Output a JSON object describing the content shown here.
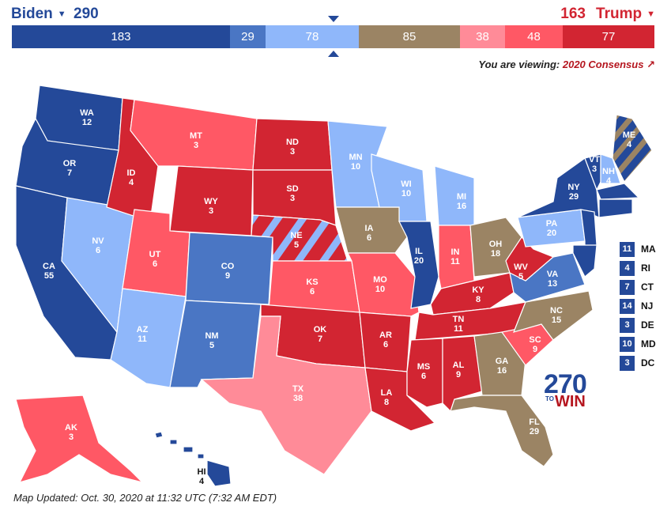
{
  "header": {
    "left_candidate": "Biden",
    "left_total": "290",
    "right_candidate": "Trump",
    "right_total": "163"
  },
  "bar": [
    {
      "value": "183",
      "color": "#244999"
    },
    {
      "value": "29",
      "color": "#4a76c4"
    },
    {
      "value": "78",
      "color": "#8fb7fa"
    },
    {
      "value": "85",
      "color": "#9b8464"
    },
    {
      "value": "38",
      "color": "#ff8b98"
    },
    {
      "value": "48",
      "color": "#ff5865"
    },
    {
      "value": "77",
      "color": "#d22532"
    }
  ],
  "viewing": {
    "prefix": "You are viewing:",
    "selection": "2020 Consensus"
  },
  "states": {
    "WA": {
      "abbr": "WA",
      "ev": "12"
    },
    "OR": {
      "abbr": "OR",
      "ev": "7"
    },
    "CA": {
      "abbr": "CA",
      "ev": "55"
    },
    "ID": {
      "abbr": "ID",
      "ev": "4"
    },
    "NV": {
      "abbr": "NV",
      "ev": "6"
    },
    "MT": {
      "abbr": "MT",
      "ev": "3"
    },
    "WY": {
      "abbr": "WY",
      "ev": "3"
    },
    "UT": {
      "abbr": "UT",
      "ev": "6"
    },
    "AZ": {
      "abbr": "AZ",
      "ev": "11"
    },
    "CO": {
      "abbr": "CO",
      "ev": "9"
    },
    "NM": {
      "abbr": "NM",
      "ev": "5"
    },
    "ND": {
      "abbr": "ND",
      "ev": "3"
    },
    "SD": {
      "abbr": "SD",
      "ev": "3"
    },
    "NE": {
      "abbr": "NE",
      "ev": "5"
    },
    "KS": {
      "abbr": "KS",
      "ev": "6"
    },
    "OK": {
      "abbr": "OK",
      "ev": "7"
    },
    "TX": {
      "abbr": "TX",
      "ev": "38"
    },
    "MN": {
      "abbr": "MN",
      "ev": "10"
    },
    "IA": {
      "abbr": "IA",
      "ev": "6"
    },
    "MO": {
      "abbr": "MO",
      "ev": "10"
    },
    "AR": {
      "abbr": "AR",
      "ev": "6"
    },
    "LA": {
      "abbr": "LA",
      "ev": "8"
    },
    "WI": {
      "abbr": "WI",
      "ev": "10"
    },
    "IL": {
      "abbr": "IL",
      "ev": "20"
    },
    "MI": {
      "abbr": "MI",
      "ev": "16"
    },
    "IN": {
      "abbr": "IN",
      "ev": "11"
    },
    "OH": {
      "abbr": "OH",
      "ev": "18"
    },
    "KY": {
      "abbr": "KY",
      "ev": "8"
    },
    "TN": {
      "abbr": "TN",
      "ev": "11"
    },
    "MS": {
      "abbr": "MS",
      "ev": "6"
    },
    "AL": {
      "abbr": "AL",
      "ev": "9"
    },
    "GA": {
      "abbr": "GA",
      "ev": "16"
    },
    "FL": {
      "abbr": "FL",
      "ev": "29"
    },
    "SC": {
      "abbr": "SC",
      "ev": "9"
    },
    "NC": {
      "abbr": "NC",
      "ev": "15"
    },
    "VA": {
      "abbr": "VA",
      "ev": "13"
    },
    "WV": {
      "abbr": "WV",
      "ev": "5"
    },
    "PA": {
      "abbr": "PA",
      "ev": "20"
    },
    "NY": {
      "abbr": "NY",
      "ev": "29"
    },
    "VT": {
      "abbr": "VT",
      "ev": "3"
    },
    "NH": {
      "abbr": "NH",
      "ev": "4"
    },
    "ME": {
      "abbr": "ME",
      "ev": "4"
    },
    "AK": {
      "abbr": "AK",
      "ev": "3"
    },
    "HI": {
      "abbr": "HI",
      "ev": "4"
    }
  },
  "small_states": [
    {
      "ev": "11",
      "name": "MA"
    },
    {
      "ev": "4",
      "name": "RI"
    },
    {
      "ev": "7",
      "name": "CT"
    },
    {
      "ev": "14",
      "name": "NJ"
    },
    {
      "ev": "3",
      "name": "DE"
    },
    {
      "ev": "10",
      "name": "MD"
    },
    {
      "ev": "3",
      "name": "DC"
    }
  ],
  "logo": {
    "number": "270",
    "to": "TO",
    "win": "WIN"
  },
  "footer": "Map Updated: Oct. 30, 2020 at 11:32 UTC (7:32 AM EDT)"
}
